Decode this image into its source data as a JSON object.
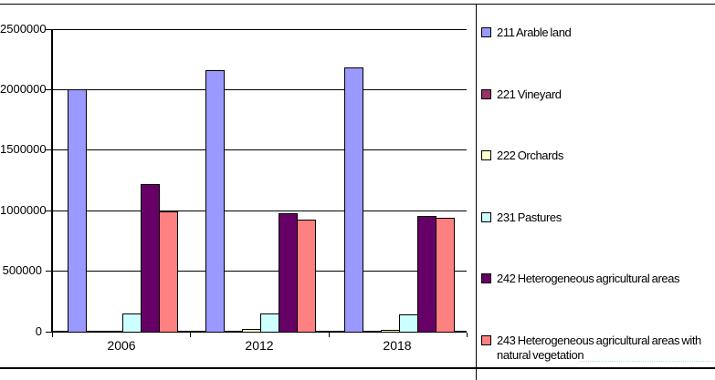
{
  "chart_data": {
    "type": "bar",
    "title": "",
    "xlabel": "",
    "ylabel": "",
    "categories": [
      "2006",
      "2012",
      "2018"
    ],
    "series": [
      {
        "name": "211  Arable land",
        "color": "#9999FF",
        "values": [
          2010000,
          2165000,
          2195000
        ]
      },
      {
        "name": "221 Vineyard",
        "color": "#993366",
        "values": [
          5000,
          10000,
          10000
        ]
      },
      {
        "name": "222 Orchards",
        "color": "#FFFFCC",
        "values": [
          8000,
          30000,
          25000
        ]
      },
      {
        "name": "231 Pastures",
        "color": "#CCFFFF",
        "values": [
          160000,
          155000,
          150000
        ]
      },
      {
        "name": "242 Heterogeneous agricultural areas",
        "color": "#660066",
        "values": [
          1230000,
          985000,
          965000
        ]
      },
      {
        "name": "243 Heterogeneous agricultural areas with natural vegetation",
        "color": "#FF8080",
        "values": [
          1000000,
          930000,
          950000
        ]
      }
    ],
    "ylim": [
      0,
      2500000
    ],
    "ytick_step": 500000,
    "ytick_labels": [
      "0",
      "500000",
      "1000000",
      "1500000",
      "2000000",
      "2500000"
    ],
    "grid": true,
    "legend_position": "right",
    "bar_border_color": "#000000"
  },
  "colors": {
    "background": "#FFFFFF",
    "axis": "#000000",
    "grid": "#000000",
    "text": "#000000",
    "divider": "#000000"
  }
}
